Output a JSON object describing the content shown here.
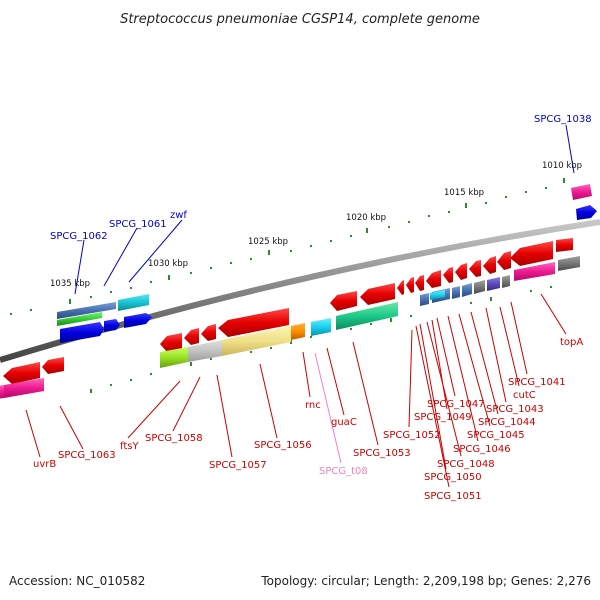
{
  "title": "Streptococcus pneumoniae CGSP14, complete genome",
  "accession_label": "Accession: NC_010582",
  "summary": "Topology: circular; Length: 2,209,198 bp; Genes: 2,276",
  "colors": {
    "backbone": "#8a8a8a",
    "tick": "#2e8b2e",
    "label_red": "#cc0000",
    "label_blue": "#0000cc",
    "label_pink": "#ee82c8"
  },
  "scale_ticks": [
    "1010 kbp",
    "1015 kbp",
    "1020 kbp",
    "1025 kbp",
    "1030 kbp",
    "1035 kbp"
  ],
  "genes_top": [
    "SPCG_1038",
    "SPCG_1061",
    "SPCG_1062",
    "zwf"
  ],
  "genes_bottom": [
    "topA",
    "SPCG_1041",
    "cutC",
    "SPCG_1043",
    "SPCG_1044",
    "SPCG_1045",
    "SPCG_1046",
    "SPCG_1047",
    "SPCG_1049",
    "SPCG_1048",
    "SPCG_1050",
    "SPCG_1051",
    "SPCG_1052",
    "SPCG_1053",
    "guaC",
    "rnc",
    "SPCG_t08",
    "SPCG_1056",
    "SPCG_1057",
    "SPCG_1058",
    "ftsY",
    "SPCG_1063",
    "uvrB"
  ]
}
